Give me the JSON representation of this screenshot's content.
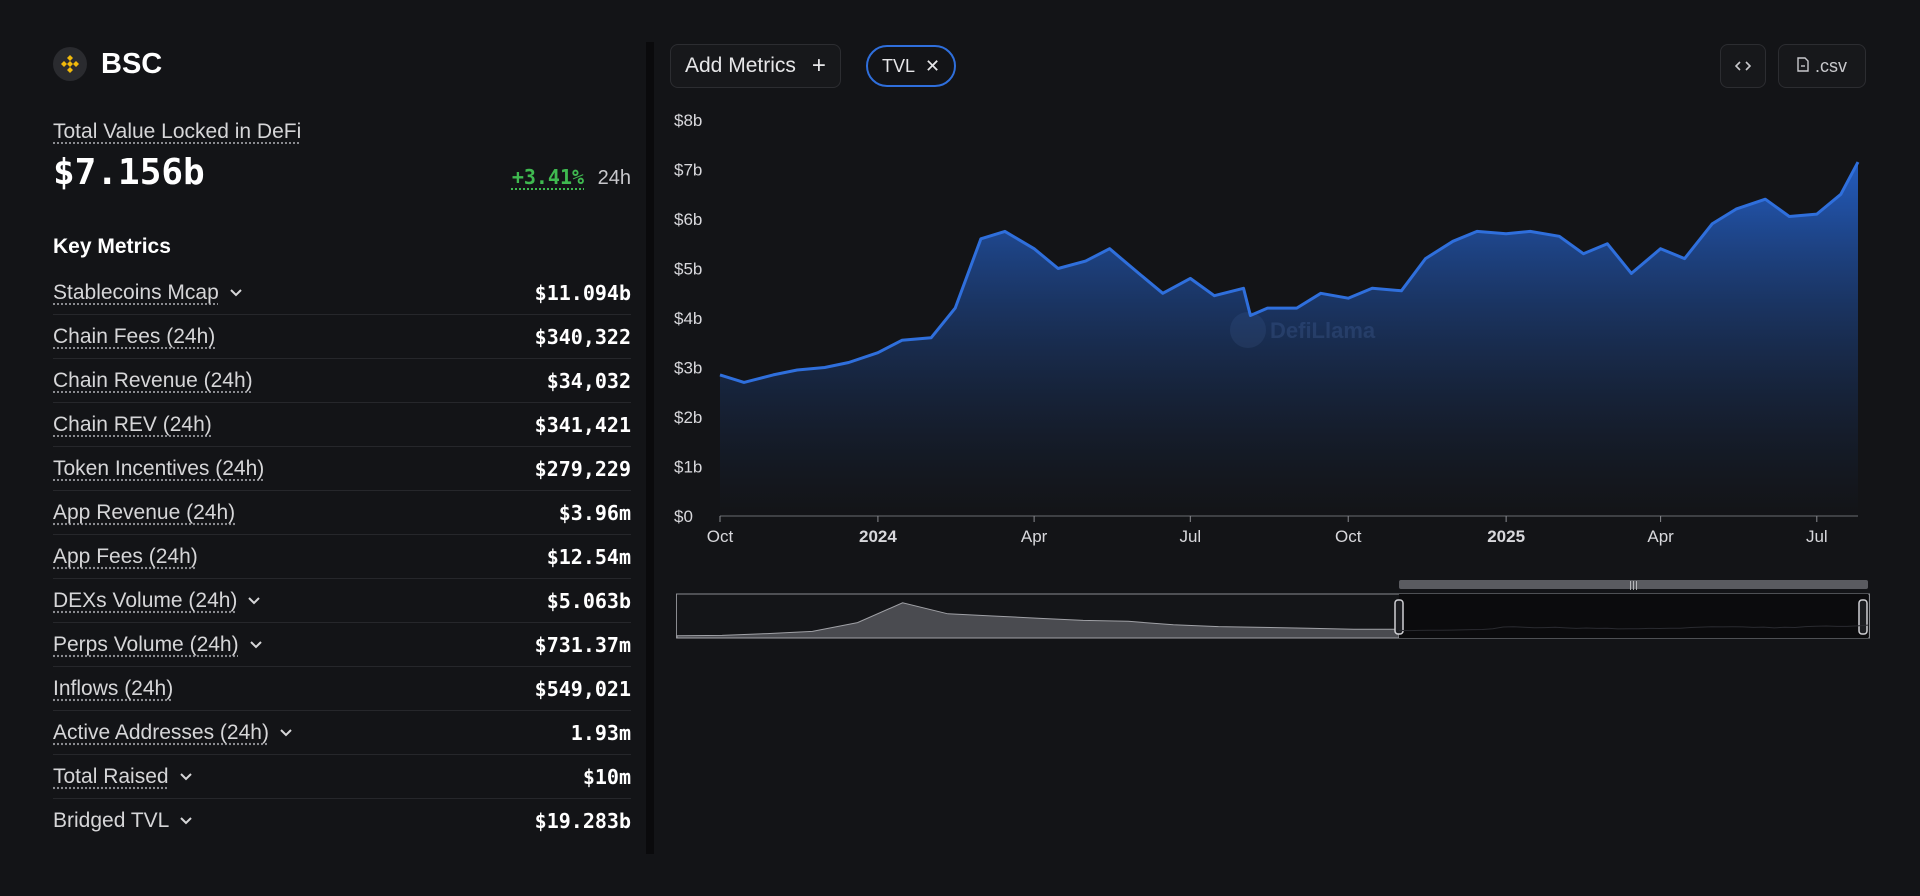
{
  "chain": {
    "name": "BSC",
    "logo_icon": "bnb-logo-icon"
  },
  "tvl": {
    "label": "Total Value Locked in DeFi",
    "value": "$7.156b",
    "change": "+3.41%",
    "period": "24h"
  },
  "key_metrics": {
    "title": "Key Metrics",
    "items": [
      {
        "label": "Stablecoins Mcap",
        "value": "$11.094b",
        "expandable": true,
        "underlined": true
      },
      {
        "label": "Chain Fees (24h)",
        "value": "$340,322",
        "expandable": false,
        "underlined": true
      },
      {
        "label": "Chain Revenue (24h)",
        "value": "$34,032",
        "expandable": false,
        "underlined": true
      },
      {
        "label": "Chain REV (24h)",
        "value": "$341,421",
        "expandable": false,
        "underlined": true
      },
      {
        "label": "Token Incentives (24h)",
        "value": "$279,229",
        "expandable": false,
        "underlined": true
      },
      {
        "label": "App Revenue (24h)",
        "value": "$3.96m",
        "expandable": false,
        "underlined": true
      },
      {
        "label": "App Fees (24h)",
        "value": "$12.54m",
        "expandable": false,
        "underlined": true
      },
      {
        "label": "DEXs Volume (24h)",
        "value": "$5.063b",
        "expandable": true,
        "underlined": true
      },
      {
        "label": "Perps Volume (24h)",
        "value": "$731.37m",
        "expandable": true,
        "underlined": true
      },
      {
        "label": "Inflows (24h)",
        "value": "$549,021",
        "expandable": false,
        "underlined": true
      },
      {
        "label": "Active Addresses (24h)",
        "value": "1.93m",
        "expandable": true,
        "underlined": true
      },
      {
        "label": "Total Raised",
        "value": "$10m",
        "expandable": true,
        "underlined": true
      },
      {
        "label": "Bridged TVL",
        "value": "$19.283b",
        "expandable": true,
        "underlined": false
      }
    ]
  },
  "toolbar": {
    "add_metrics_label": "Add Metrics",
    "active_metric_chip": "TVL",
    "embed_icon": "code-icon",
    "csv_label": ".csv",
    "csv_icon": "file-icon"
  },
  "chart_data": {
    "type": "area",
    "title": "",
    "xlabel": "",
    "ylabel": "",
    "series": [
      {
        "name": "TVL",
        "color": "#2f6fdc",
        "x": [
          "2023-10-01",
          "2023-10-15",
          "2023-11-01",
          "2023-11-15",
          "2023-12-01",
          "2023-12-15",
          "2024-01-01",
          "2024-01-15",
          "2024-02-01",
          "2024-02-15",
          "2024-03-01",
          "2024-03-15",
          "2024-04-01",
          "2024-04-15",
          "2024-05-01",
          "2024-05-15",
          "2024-06-01",
          "2024-06-15",
          "2024-07-01",
          "2024-07-15",
          "2024-08-01",
          "2024-08-05",
          "2024-08-15",
          "2024-09-01",
          "2024-09-15",
          "2024-10-01",
          "2024-10-15",
          "2024-11-01",
          "2024-11-15",
          "2024-12-01",
          "2024-12-15",
          "2025-01-01",
          "2025-01-15",
          "2025-02-01",
          "2025-02-15",
          "2025-03-01",
          "2025-03-15",
          "2025-04-01",
          "2025-04-15",
          "2025-05-01",
          "2025-05-15",
          "2025-06-01",
          "2025-06-15",
          "2025-07-01",
          "2025-07-15",
          "2025-07-25"
        ],
        "values": [
          2.85,
          2.7,
          2.85,
          2.95,
          3.0,
          3.1,
          3.3,
          3.55,
          3.6,
          4.2,
          5.6,
          5.75,
          5.4,
          5.0,
          5.15,
          5.4,
          4.9,
          4.5,
          4.8,
          4.45,
          4.6,
          4.05,
          4.2,
          4.2,
          4.5,
          4.4,
          4.6,
          4.55,
          5.2,
          5.55,
          5.75,
          5.7,
          5.75,
          5.65,
          5.3,
          5.5,
          4.9,
          5.4,
          5.2,
          5.9,
          6.2,
          6.4,
          6.05,
          6.1,
          6.5,
          7.15
        ]
      }
    ],
    "y_ticks": [
      "$0",
      "$1b",
      "$2b",
      "$3b",
      "$4b",
      "$5b",
      "$6b",
      "$7b",
      "$8b"
    ],
    "ylim": [
      0,
      8
    ],
    "x_ticks": [
      {
        "date": "2023-10-01",
        "label": "Oct",
        "bold": false
      },
      {
        "date": "2024-01-01",
        "label": "2024",
        "bold": true
      },
      {
        "date": "2024-04-01",
        "label": "Apr",
        "bold": false
      },
      {
        "date": "2024-07-01",
        "label": "Jul",
        "bold": false
      },
      {
        "date": "2024-10-01",
        "label": "Oct",
        "bold": false
      },
      {
        "date": "2025-01-01",
        "label": "2025",
        "bold": true
      },
      {
        "date": "2025-04-01",
        "label": "Apr",
        "bold": false
      },
      {
        "date": "2025-07-01",
        "label": "Jul",
        "bold": false
      }
    ],
    "grid": false,
    "watermark": "DefiLlama"
  }
}
